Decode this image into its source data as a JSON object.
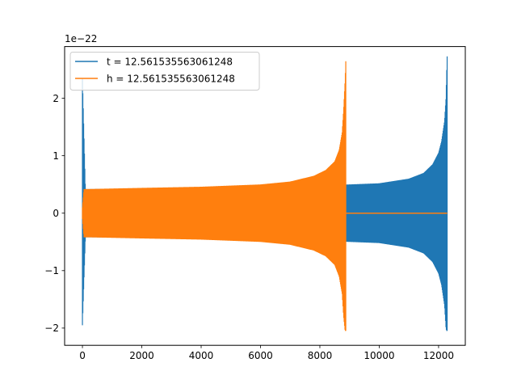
{
  "chart_data": {
    "type": "line",
    "title": "",
    "xlabel": "",
    "ylabel": "",
    "offset_label": "1e−22",
    "xlim": [
      -600,
      12900
    ],
    "ylim": [
      -2.3,
      2.9
    ],
    "x_ticks": [
      0,
      2000,
      4000,
      6000,
      8000,
      10000,
      12000
    ],
    "x_tick_labels": [
      "0",
      "2000",
      "4000",
      "6000",
      "8000",
      "10000",
      "12000"
    ],
    "y_ticks": [
      -2,
      -1,
      0,
      1,
      2
    ],
    "y_tick_labels": [
      "−2",
      "−1",
      "0",
      "1",
      "2"
    ],
    "grid": false,
    "legend_position": "upper-left",
    "series": [
      {
        "name": "t = 12.561535563061248",
        "color": "#1f77b4",
        "signal": "chirp",
        "x_start": 0,
        "x_end": 12290,
        "envelope_x": [
          0,
          100,
          300,
          2000,
          4000,
          6000,
          8000,
          10000,
          11000,
          11500,
          11800,
          12000,
          12100,
          12200,
          12250,
          12270,
          12290
        ],
        "envelope_y": [
          2.35,
          0.42,
          0.42,
          0.43,
          0.44,
          0.46,
          0.48,
          0.52,
          0.6,
          0.7,
          0.85,
          1.05,
          1.25,
          1.6,
          2.0,
          2.4,
          2.75
        ],
        "envelope_y_low": [
          -1.95,
          -0.42,
          -0.42,
          -0.43,
          -0.44,
          -0.46,
          -0.48,
          -0.52,
          -0.6,
          -0.7,
          -0.85,
          -1.05,
          -1.25,
          -1.6,
          -2.0,
          -2.05,
          -2.05
        ]
      },
      {
        "name": "h = 12.561535563061248",
        "color": "#ff7f0e",
        "signal": "chirp",
        "x_start": 0,
        "x_end": 8880,
        "flat_after": [
          8880,
          12290
        ],
        "envelope_x": [
          0,
          50,
          200,
          2000,
          4000,
          6000,
          7000,
          7800,
          8200,
          8500,
          8650,
          8750,
          8800,
          8850,
          8880
        ],
        "envelope_y": [
          0.1,
          0.42,
          0.42,
          0.44,
          0.46,
          0.5,
          0.55,
          0.65,
          0.75,
          0.9,
          1.1,
          1.4,
          1.8,
          2.3,
          2.75
        ],
        "envelope_y_low": [
          -0.1,
          -0.42,
          -0.42,
          -0.44,
          -0.46,
          -0.5,
          -0.55,
          -0.65,
          -0.75,
          -0.9,
          -1.1,
          -1.4,
          -1.8,
          -2.05,
          -2.05
        ]
      }
    ]
  }
}
